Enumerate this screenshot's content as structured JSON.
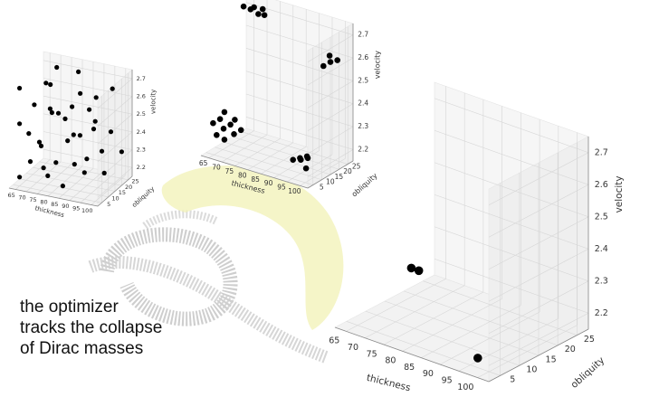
{
  "caption": {
    "lines": [
      "the optimizer",
      "tracks the collapse",
      "of Dirac masses"
    ]
  },
  "colors": {
    "points": "#000000",
    "pane_face": "#f2f2f2",
    "grid": "#d6d6d6",
    "arc_fill": "#f1f2b6",
    "logo": "#c7c7c7"
  },
  "logo": {
    "kind": "watermark",
    "letters": "QP"
  },
  "chart_data": [
    {
      "type": "scatter3d",
      "xlabel": "thickness",
      "ylabel": "obliquity",
      "zlabel": "velocity",
      "xticks": [
        "65",
        "70",
        "75",
        "80",
        "85",
        "90",
        "95",
        "100"
      ],
      "yticks": [
        "5",
        "10",
        "15",
        "20",
        "25"
      ],
      "zticks": [
        "2.2",
        "2.3",
        "2.4",
        "2.5",
        "2.6",
        "2.7"
      ],
      "xlim": [
        62,
        103
      ],
      "ylim": [
        2,
        28
      ],
      "zlim": [
        2.15,
        2.75
      ],
      "grid": true,
      "points": [
        [
          65,
          5,
          2.2
        ],
        [
          65,
          5,
          2.5
        ],
        [
          65,
          5,
          2.7
        ],
        [
          65,
          12,
          2.4
        ],
        [
          65,
          20,
          2.3
        ],
        [
          65,
          25,
          2.6
        ],
        [
          70,
          5,
          2.3
        ],
        [
          70,
          8,
          2.6
        ],
        [
          70,
          15,
          2.2
        ],
        [
          70,
          20,
          2.5
        ],
        [
          70,
          25,
          2.7
        ],
        [
          75,
          5,
          2.4
        ],
        [
          75,
          10,
          2.2
        ],
        [
          75,
          12,
          2.7
        ],
        [
          75,
          18,
          2.5
        ],
        [
          75,
          25,
          2.3
        ],
        [
          80,
          5,
          2.6
        ],
        [
          80,
          8,
          2.3
        ],
        [
          80,
          15,
          2.5
        ],
        [
          80,
          22,
          2.2
        ],
        [
          80,
          25,
          2.7
        ],
        [
          85,
          5,
          2.2
        ],
        [
          85,
          12,
          2.6
        ],
        [
          85,
          18,
          2.4
        ],
        [
          85,
          25,
          2.5
        ],
        [
          90,
          5,
          2.5
        ],
        [
          90,
          10,
          2.7
        ],
        [
          90,
          15,
          2.3
        ],
        [
          90,
          22,
          2.6
        ],
        [
          95,
          5,
          2.3
        ],
        [
          95,
          12,
          2.5
        ],
        [
          95,
          20,
          2.2
        ],
        [
          95,
          25,
          2.4
        ],
        [
          100,
          5,
          2.6
        ],
        [
          100,
          10,
          2.4
        ],
        [
          100,
          18,
          2.7
        ],
        [
          100,
          25,
          2.3
        ]
      ]
    },
    {
      "type": "scatter3d",
      "xlabel": "thickness",
      "ylabel": "obliquity",
      "zlabel": "velocity",
      "xticks": [
        "65",
        "70",
        "75",
        "80",
        "85",
        "90",
        "95",
        "100"
      ],
      "yticks": [
        "5",
        "10",
        "15",
        "20",
        "25"
      ],
      "zticks": [
        "2.2",
        "2.3",
        "2.4",
        "2.5",
        "2.6",
        "2.7"
      ],
      "xlim": [
        62,
        103
      ],
      "ylim": [
        2,
        28
      ],
      "zlim": [
        2.15,
        2.75
      ],
      "grid": true,
      "points": [
        [
          65,
          22,
          2.72
        ],
        [
          67,
          23,
          2.71
        ],
        [
          69,
          22,
          2.73
        ],
        [
          71,
          24,
          2.72
        ],
        [
          73,
          22,
          2.71
        ],
        [
          70,
          23,
          2.7
        ],
        [
          64,
          6,
          2.28
        ],
        [
          66,
          7,
          2.3
        ],
        [
          68,
          6,
          2.27
        ],
        [
          70,
          7,
          2.29
        ],
        [
          72,
          6,
          2.26
        ],
        [
          66,
          5,
          2.24
        ],
        [
          69,
          5,
          2.23
        ],
        [
          71,
          8,
          2.31
        ],
        [
          74,
          7,
          2.28
        ],
        [
          67,
          8,
          2.33
        ],
        [
          97,
          20,
          2.58
        ],
        [
          99,
          21,
          2.6
        ],
        [
          101,
          22,
          2.61
        ],
        [
          98,
          22,
          2.62
        ],
        [
          96,
          4,
          2.24
        ],
        [
          98,
          5,
          2.25
        ],
        [
          100,
          6,
          2.26
        ],
        [
          97,
          7,
          2.23
        ],
        [
          99,
          8,
          2.24
        ],
        [
          101,
          4,
          2.22
        ]
      ]
    },
    {
      "type": "scatter3d",
      "xlabel": "thickness",
      "ylabel": "obliquity",
      "zlabel": "velocity",
      "xticks": [
        "65",
        "70",
        "75",
        "80",
        "85",
        "90",
        "95",
        "100"
      ],
      "yticks": [
        "5",
        "10",
        "15",
        "20",
        "25"
      ],
      "zticks": [
        "2.2",
        "2.3",
        "2.4",
        "2.5",
        "2.6",
        "2.7"
      ],
      "xlim": [
        62,
        103
      ],
      "ylim": [
        2,
        28
      ],
      "zlim": [
        2.15,
        2.75
      ],
      "grid": true,
      "points": [
        [
          64,
          20,
          2.23
        ],
        [
          66,
          20,
          2.23
        ],
        [
          97,
          5,
          2.18
        ]
      ]
    }
  ]
}
